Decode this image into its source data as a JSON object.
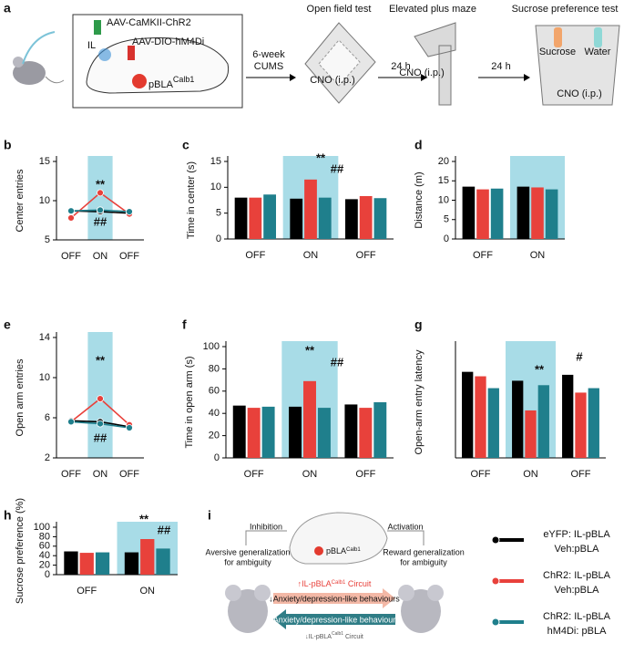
{
  "panel_a": {
    "label": "a",
    "virus1": "AAV-CaMKII-ChR2",
    "il": "IL",
    "virus2": "AAV-DIO-hM4Di",
    "pbla": "pBLA",
    "calb1": "Calb1",
    "cums1": "6-week",
    "cums2": "CUMS",
    "oft": "Open field test",
    "cno1": "CNO (i.p.)",
    "gap1": "24 h",
    "epm": "Elevated plus maze",
    "cno2": "CNO (i.p.)",
    "gap2": "24 h",
    "spt": "Sucrose preference test",
    "sucrose": "Sucrose",
    "water": "Water",
    "cno3": "CNO (i.p.)"
  },
  "chart_data": [
    {
      "type": "line",
      "label": "b",
      "y_label": "Center entries",
      "categories": [
        "OFF",
        "ON",
        "OFF"
      ],
      "ylim": [
        5,
        15
      ],
      "yticks": [
        5,
        10,
        15
      ],
      "highlight_index": 1,
      "annotations": [
        "**",
        "##"
      ],
      "series": [
        {
          "color": "#000000",
          "values": [
            8.7,
            8.6,
            8.4
          ]
        },
        {
          "color": "#e8413b",
          "values": [
            7.8,
            11.0,
            8.3
          ]
        },
        {
          "color": "#1f7f8c",
          "values": [
            8.7,
            8.8,
            8.6
          ]
        }
      ]
    },
    {
      "type": "bar",
      "label": "c",
      "y_label": "Time in center (s)",
      "categories": [
        "OFF",
        "ON",
        "OFF"
      ],
      "ylim": [
        0,
        15
      ],
      "yticks": [
        0,
        5,
        10,
        15
      ],
      "highlight_index": 1,
      "annotations": [
        "**",
        "##"
      ],
      "series": [
        {
          "color": "#000000",
          "values": [
            8.0,
            7.8,
            7.7
          ]
        },
        {
          "color": "#e8413b",
          "values": [
            8.0,
            11.5,
            8.3
          ]
        },
        {
          "color": "#1f7f8c",
          "values": [
            8.6,
            8.0,
            7.9
          ]
        }
      ]
    },
    {
      "type": "bar",
      "label": "d",
      "y_label": "Distance (m)",
      "categories": [
        "OFF",
        "ON"
      ],
      "ylim": [
        0,
        20
      ],
      "yticks": [
        0,
        5,
        10,
        15,
        20
      ],
      "highlight_index": 1,
      "annotations": [],
      "series": [
        {
          "color": "#000000",
          "values": [
            13.5,
            13.5
          ]
        },
        {
          "color": "#e8413b",
          "values": [
            12.8,
            13.3
          ]
        },
        {
          "color": "#1f7f8c",
          "values": [
            13.0,
            12.8
          ]
        }
      ]
    },
    {
      "type": "line",
      "label": "e",
      "y_label": "Open arm entries",
      "categories": [
        "OFF",
        "ON",
        "OFF"
      ],
      "ylim": [
        2,
        14
      ],
      "yticks": [
        2,
        6,
        10,
        14
      ],
      "highlight_index": 1,
      "annotations": [
        "**",
        "##"
      ],
      "series": [
        {
          "color": "#000000",
          "values": [
            5.7,
            5.6,
            5.1
          ]
        },
        {
          "color": "#e8413b",
          "values": [
            5.6,
            7.9,
            5.3
          ]
        },
        {
          "color": "#1f7f8c",
          "values": [
            5.6,
            5.4,
            5.0
          ]
        }
      ]
    },
    {
      "type": "bar",
      "label": "f",
      "y_label": "Time in open arm (s)",
      "categories": [
        "OFF",
        "ON",
        "OFF"
      ],
      "ylim": [
        0,
        100
      ],
      "yticks": [
        0,
        20,
        40,
        60,
        80,
        100
      ],
      "highlight_index": 1,
      "annotations": [
        "**",
        "##"
      ],
      "series": [
        {
          "color": "#000000",
          "values": [
            47,
            46,
            48
          ]
        },
        {
          "color": "#e8413b",
          "values": [
            45,
            69,
            45
          ]
        },
        {
          "color": "#1f7f8c",
          "values": [
            46,
            45,
            50
          ]
        }
      ]
    },
    {
      "type": "bar",
      "label": "g",
      "y_label": "Open-arm entry latency",
      "categories": [
        "OFF",
        "ON",
        "OFF"
      ],
      "ylim": [
        0,
        7.5
      ],
      "highlight_index": 1,
      "annotations": [
        "**",
        "#"
      ],
      "series": [
        {
          "color": "#000000",
          "values": [
            5.8,
            5.2,
            5.6
          ]
        },
        {
          "color": "#e8413b",
          "values": [
            5.5,
            3.2,
            4.4
          ]
        },
        {
          "color": "#1f7f8c",
          "values": [
            4.7,
            4.9,
            4.7
          ]
        }
      ]
    },
    {
      "type": "bar",
      "label": "h",
      "y_label": "Sucrose preference (%)",
      "categories": [
        "OFF",
        "ON"
      ],
      "ylim": [
        0,
        100
      ],
      "yticks": [
        0,
        20,
        40,
        60,
        80,
        100
      ],
      "highlight_index": 1,
      "annotations": [
        "**",
        "##"
      ],
      "series": [
        {
          "color": "#000000",
          "values": [
            49,
            47
          ]
        },
        {
          "color": "#e8413b",
          "values": [
            46,
            75
          ]
        },
        {
          "color": "#1f7f8c",
          "values": [
            47,
            55
          ]
        }
      ]
    }
  ],
  "panel_i": {
    "label": "i",
    "inhibition": "Inhibition",
    "activation": "Activation",
    "aversive": [
      "Aversive generalization",
      "for ambiguity"
    ],
    "reward": [
      "Reward generalization",
      "for ambiguity"
    ],
    "pbla": "pBLA",
    "calb1": "Calb1",
    "up_circuit": "↑IL-pBLA",
    "up_circuit_sup": "Calb1",
    "up_circuit_end": " Circuit",
    "down_behaviour": "↓Anxiety/depression-like behaviours",
    "up_behaviour": "↑Anxiety/depression-like behaviours",
    "down_circuit": "↓IL-pBLA",
    "down_circuit_sup": "Calb1",
    "down_circuit_end": " Circuit"
  },
  "legend": [
    {
      "color": "#000000",
      "lines": [
        "eYFP: IL-pBLA",
        "Veh:pBLA"
      ]
    },
    {
      "color": "#e8413b",
      "lines": [
        "ChR2: IL-pBLA",
        "Veh:pBLA"
      ]
    },
    {
      "color": "#1f7f8c",
      "lines": [
        "ChR2: IL-pBLA",
        "hM4Di: pBLA"
      ]
    }
  ]
}
